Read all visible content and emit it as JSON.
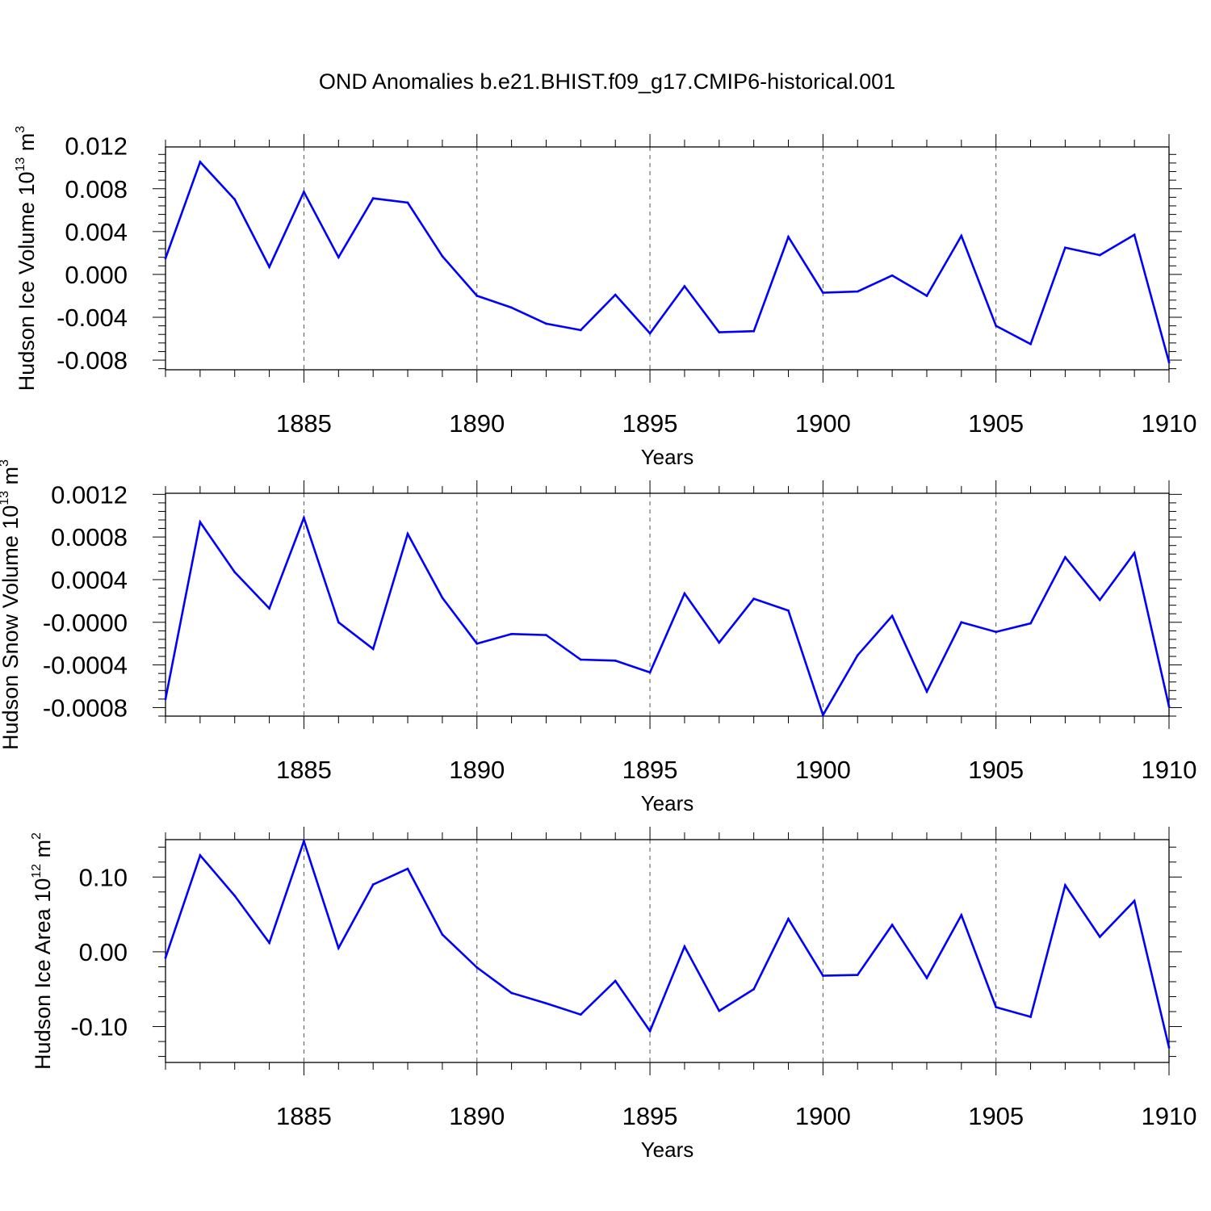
{
  "figure": {
    "title": "OND Anomalies b.e21.BHIST.f09_g17.CMIP6-historical.001",
    "line_color": "#0000ff",
    "grid_color": "#555555"
  },
  "chart_data": [
    {
      "type": "line",
      "title": "",
      "xlabel": "Years",
      "ylabel": "Hudson Ice Volume 10",
      "ylabel_exponent": "13",
      "ylabel_unit": " m",
      "ylabel_unit_exponent": "3",
      "xlim": [
        1881,
        1910
      ],
      "ylim": [
        -0.0089,
        0.0119
      ],
      "xticks": [
        1885,
        1890,
        1895,
        1900,
        1905,
        1910
      ],
      "xtick_labels": [
        "1885",
        "1890",
        "1895",
        "1900",
        "1905",
        "1910"
      ],
      "yticks": [
        0.012,
        0.008,
        0.004,
        0.0,
        -0.004,
        -0.008
      ],
      "ytick_labels": [
        "0.012",
        "0.008",
        "0.004",
        "0.000",
        "-0.004",
        "-0.008"
      ],
      "x": [
        1881,
        1882,
        1883,
        1884,
        1885,
        1886,
        1887,
        1888,
        1889,
        1890,
        1891,
        1892,
        1893,
        1894,
        1895,
        1896,
        1897,
        1898,
        1899,
        1900,
        1901,
        1902,
        1903,
        1904,
        1905,
        1906,
        1907,
        1908,
        1909,
        1910
      ],
      "values": [
        0.0015,
        0.0105,
        0.007,
        0.0007,
        0.0077,
        0.0016,
        0.0071,
        0.0067,
        0.0017,
        -0.002,
        -0.0031,
        -0.0046,
        -0.0052,
        -0.0019,
        -0.0055,
        -0.0011,
        -0.0054,
        -0.0053,
        0.0035,
        -0.0017,
        -0.0016,
        -0.0001,
        -0.002,
        0.0036,
        -0.0048,
        -0.0065,
        0.0025,
        0.0018,
        0.0037,
        -0.0082
      ]
    },
    {
      "type": "line",
      "title": "",
      "xlabel": "Years",
      "ylabel": "Hudson Snow Volume 10",
      "ylabel_exponent": "13",
      "ylabel_unit": " m",
      "ylabel_unit_exponent": "3",
      "xlim": [
        1881,
        1910
      ],
      "ylim": [
        -0.00088,
        0.00121
      ],
      "xticks": [
        1885,
        1890,
        1895,
        1900,
        1905,
        1910
      ],
      "xtick_labels": [
        "1885",
        "1890",
        "1895",
        "1900",
        "1905",
        "1910"
      ],
      "yticks": [
        0.0012,
        0.0008,
        0.0004,
        0.0,
        -0.0004,
        -0.0008
      ],
      "ytick_labels": [
        "0.0012",
        "0.0008",
        "0.0004",
        "-0.0000",
        "-0.0004",
        "-0.0008"
      ],
      "x": [
        1881,
        1882,
        1883,
        1884,
        1885,
        1886,
        1887,
        1888,
        1889,
        1890,
        1891,
        1892,
        1893,
        1894,
        1895,
        1896,
        1897,
        1898,
        1899,
        1900,
        1901,
        1902,
        1903,
        1904,
        1905,
        1906,
        1907,
        1908,
        1909,
        1910
      ],
      "values": [
        -0.00072,
        0.00094,
        0.00047,
        0.00013,
        0.00098,
        0.0,
        -0.00025,
        0.00083,
        0.00023,
        -0.0002,
        -0.00011,
        -0.00012,
        -0.00035,
        -0.00036,
        -0.00047,
        0.00027,
        -0.00019,
        0.00022,
        0.00011,
        -0.00087,
        -0.00031,
        6e-05,
        -0.00065,
        0.0,
        -9e-05,
        -1e-05,
        0.00061,
        0.00021,
        0.00065,
        -0.00079
      ]
    },
    {
      "type": "line",
      "title": "",
      "xlabel": "Years",
      "ylabel": "Hudson Ice Area 10",
      "ylabel_exponent": "12",
      "ylabel_unit": " m",
      "ylabel_unit_exponent": "2",
      "xlim": [
        1881,
        1910
      ],
      "ylim": [
        -0.148,
        0.15
      ],
      "xticks": [
        1885,
        1890,
        1895,
        1900,
        1905,
        1910
      ],
      "xtick_labels": [
        "1885",
        "1890",
        "1895",
        "1900",
        "1905",
        "1910"
      ],
      "yticks": [
        0.1,
        0.0,
        -0.1
      ],
      "ytick_labels": [
        "0.10",
        "0.00",
        "-0.10"
      ],
      "x": [
        1881,
        1882,
        1883,
        1884,
        1885,
        1886,
        1887,
        1888,
        1889,
        1890,
        1891,
        1892,
        1893,
        1894,
        1895,
        1896,
        1897,
        1898,
        1899,
        1900,
        1901,
        1902,
        1903,
        1904,
        1905,
        1906,
        1907,
        1908,
        1909,
        1910
      ],
      "values": [
        -0.008,
        0.129,
        0.075,
        0.012,
        0.148,
        0.005,
        0.09,
        0.111,
        0.023,
        -0.021,
        -0.055,
        -0.069,
        -0.084,
        -0.039,
        -0.106,
        0.007,
        -0.079,
        -0.05,
        0.044,
        -0.032,
        -0.031,
        0.036,
        -0.035,
        0.049,
        -0.074,
        -0.087,
        0.089,
        0.02,
        0.068,
        -0.128
      ]
    }
  ]
}
